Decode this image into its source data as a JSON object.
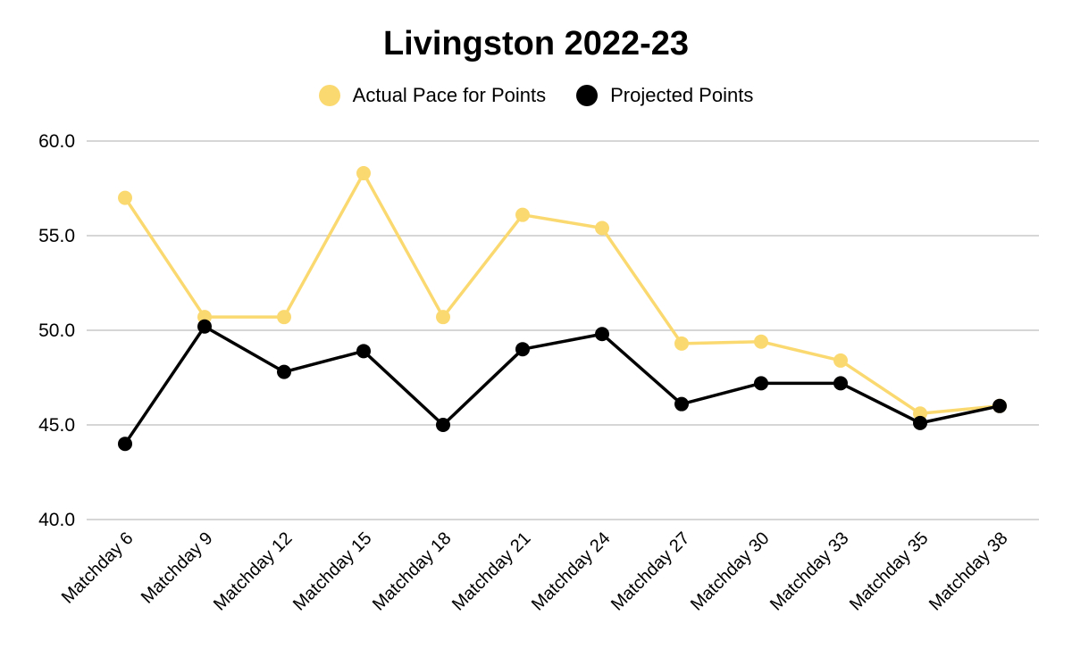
{
  "chart_data": {
    "type": "line",
    "title": "Livingston 2022-23",
    "categories": [
      "Matchday 6",
      "Matchday 9",
      "Matchday 12",
      "Matchday 15",
      "Matchday 18",
      "Matchday 21",
      "Matchday 24",
      "Matchday 27",
      "Matchday 30",
      "Matchday 33",
      "Matchday 35",
      "Matchday 38"
    ],
    "series": [
      {
        "name": "Actual Pace for Points",
        "color": "#fbd971",
        "values": [
          57.0,
          50.7,
          50.7,
          58.3,
          50.7,
          56.1,
          55.4,
          49.3,
          49.4,
          48.4,
          45.6,
          46.0
        ]
      },
      {
        "name": "Projected Points",
        "color": "#000000",
        "values": [
          44.0,
          50.2,
          47.8,
          48.9,
          45.0,
          49.0,
          49.8,
          46.1,
          47.2,
          47.2,
          45.1,
          46.0
        ]
      }
    ],
    "yticks": [
      "40.0",
      "45.0",
      "50.0",
      "55.0",
      "60.0"
    ],
    "ylim": [
      40,
      60
    ],
    "grid": true,
    "legend": "top-center"
  }
}
